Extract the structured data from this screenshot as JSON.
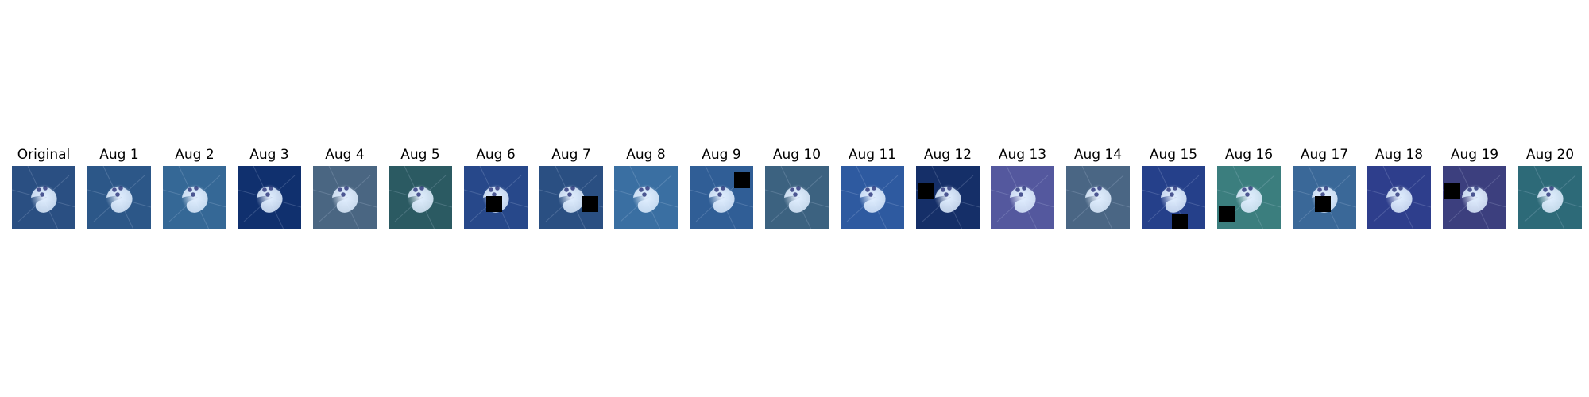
{
  "figure": {
    "panels": [
      {
        "title": "Original",
        "tone": "#2a4f82",
        "cutout": null
      },
      {
        "title": "Aug 1",
        "tone": "#2c5788",
        "cutout": null
      },
      {
        "title": "Aug 2",
        "tone": "#356896",
        "cutout": null
      },
      {
        "title": "Aug 3",
        "tone": "#10306e",
        "cutout": null
      },
      {
        "title": "Aug 4",
        "tone": "#4a6682",
        "cutout": null
      },
      {
        "title": "Aug 5",
        "tone": "#2b5a62",
        "cutout": null
      },
      {
        "title": "Aug 6",
        "tone": "#27488a",
        "cutout": "center-right"
      },
      {
        "title": "Aug 7",
        "tone": "#2a4f82",
        "cutout": "right"
      },
      {
        "title": "Aug 8",
        "tone": "#3a6fa2",
        "cutout": null
      },
      {
        "title": "Aug 9",
        "tone": "#305e96",
        "cutout": "top-right"
      },
      {
        "title": "Aug 10",
        "tone": "#3c6280",
        "cutout": null
      },
      {
        "title": "Aug 11",
        "tone": "#2e5aa0",
        "cutout": null
      },
      {
        "title": "Aug 12",
        "tone": "#152f68",
        "cutout": "left"
      },
      {
        "title": "Aug 13",
        "tone": "#54589e",
        "cutout": null
      },
      {
        "title": "Aug 14",
        "tone": "#4a6684",
        "cutout": null
      },
      {
        "title": "Aug 15",
        "tone": "#25408a",
        "cutout": "bottom-right"
      },
      {
        "title": "Aug 16",
        "tone": "#3b7e7e",
        "cutout": "bottom-left"
      },
      {
        "title": "Aug 17",
        "tone": "#3a6898",
        "cutout": "center-right"
      },
      {
        "title": "Aug 18",
        "tone": "#2e3e8c",
        "cutout": null
      },
      {
        "title": "Aug 19",
        "tone": "#3c3f7e",
        "cutout": "left"
      },
      {
        "title": "Aug 20",
        "tone": "#2d6a78",
        "cutout": null
      }
    ]
  }
}
